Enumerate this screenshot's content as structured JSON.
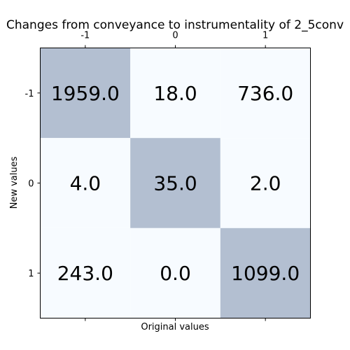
{
  "chart_data": {
    "type": "heatmap",
    "title": "Changes from conveyance to instrumentality of 2_5conv",
    "xlabel": "Original values",
    "ylabel": "New values",
    "x_categories": [
      "-1",
      "0",
      "1"
    ],
    "y_categories": [
      "-1",
      "0",
      "1"
    ],
    "values": [
      [
        1959.0,
        18.0,
        736.0
      ],
      [
        4.0,
        35.0,
        2.0
      ],
      [
        243.0,
        0.0,
        1099.0
      ]
    ],
    "value_labels": [
      [
        "1959.0",
        "18.0",
        "736.0"
      ],
      [
        "4.0",
        "35.0",
        "2.0"
      ],
      [
        "243.0",
        "0.0",
        "1099.0"
      ]
    ],
    "highlight_color": "#b3bfd1",
    "background_color": "#f7fbff",
    "x_ticks_position": "top"
  }
}
